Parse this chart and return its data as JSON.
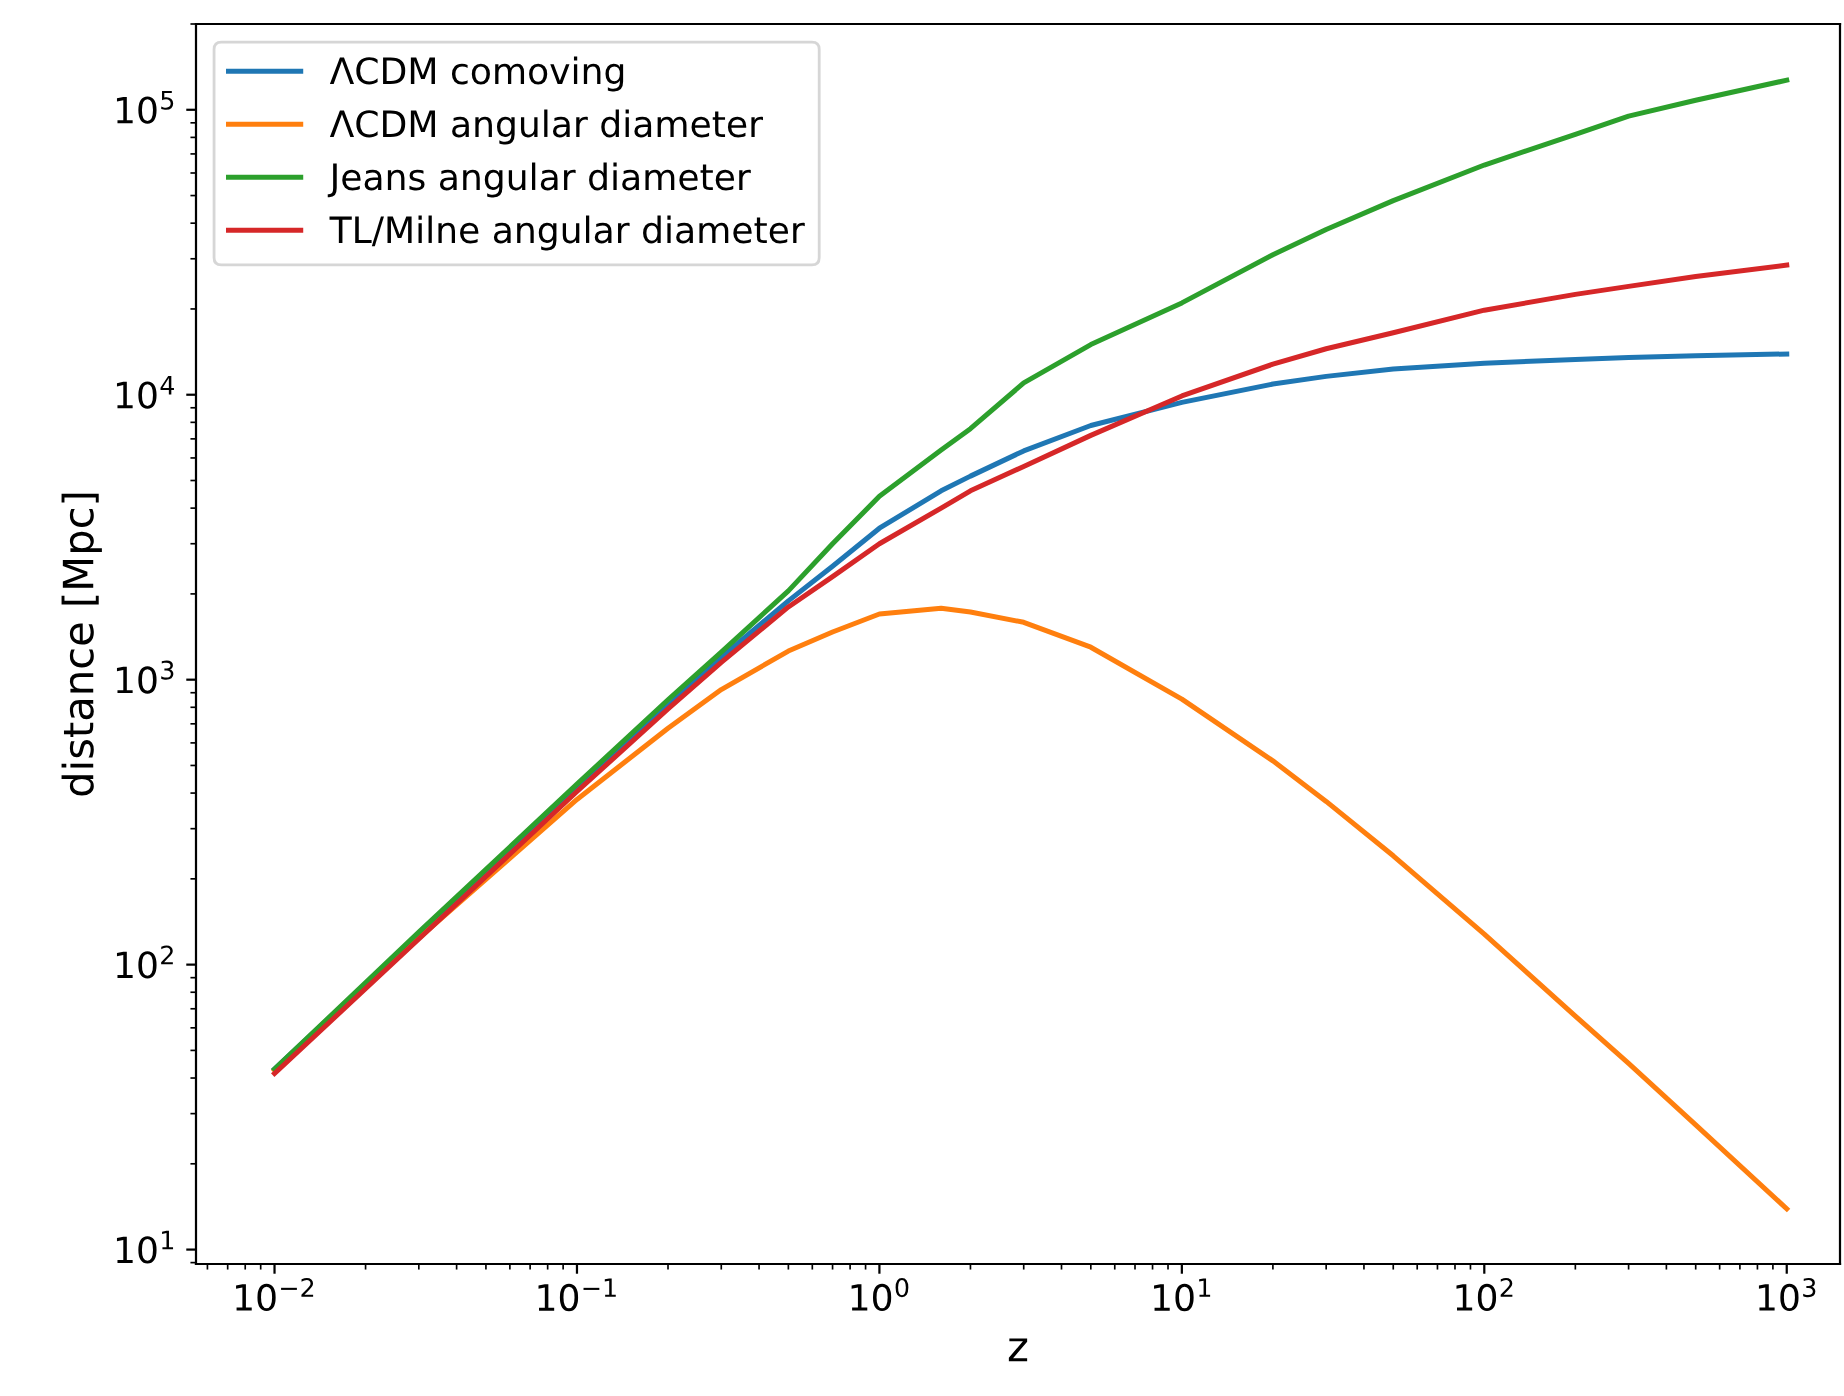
{
  "chart_data": {
    "type": "line",
    "xlabel": "z",
    "ylabel": "distance [Mpc]",
    "log": "xy",
    "legend": "top left",
    "grid": false,
    "marker": "none",
    "line_style": "solid",
    "xlim": [
      0.0055,
      1500
    ],
    "ylim": [
      8.9,
      200000
    ],
    "xticks": [
      {
        "value": 0.01,
        "label": "10$^{−2}$"
      },
      {
        "value": 0.1,
        "label": "10$^{−1}$"
      },
      {
        "value": 1,
        "label": "10$^{0}$"
      },
      {
        "value": 10,
        "label": "10$^{1}$"
      },
      {
        "value": 100,
        "label": "10$^{2}$"
      },
      {
        "value": 1000,
        "label": "10$^{3}$"
      }
    ],
    "yticks": [
      {
        "value": 10,
        "label": "10$^{1}$"
      },
      {
        "value": 100,
        "label": "10$^{2}$"
      },
      {
        "value": 1000,
        "label": "10$^{3}$"
      },
      {
        "value": 10000,
        "label": "10$^{4}$"
      },
      {
        "value": 100000,
        "label": "10$^{5}$"
      }
    ],
    "x": [
      0.01,
      0.03,
      0.1,
      0.2,
      0.3,
      0.5,
      0.7,
      1,
      1.6,
      2,
      3,
      5,
      10,
      20,
      30,
      50,
      100,
      200,
      300,
      500,
      1000
    ],
    "series": [
      {
        "name": "ΛCDM comoving",
        "color": "#1f77b4",
        "values": [
          43,
          128,
          418,
          810,
          1200,
          1890,
          2500,
          3400,
          4600,
          5180,
          6350,
          7800,
          9400,
          10900,
          11600,
          12300,
          12900,
          13300,
          13500,
          13700,
          13900
        ]
      },
      {
        "name": "ΛCDM angular diameter",
        "color": "#ff7f0e",
        "values": [
          42.6,
          124,
          380,
          675,
          923,
          1260,
          1470,
          1700,
          1780,
          1727,
          1590,
          1300,
          855,
          519,
          374,
          241,
          128,
          66,
          45,
          27.4,
          13.9
        ]
      },
      {
        "name": "Jeans angular diameter",
        "color": "#2ca02c",
        "values": [
          43,
          130,
          430,
          850,
          1250,
          2050,
          3000,
          4400,
          6400,
          7600,
          11000,
          15000,
          21000,
          31000,
          38000,
          48000,
          64000,
          82000,
          95000,
          108000,
          127000
        ]
      },
      {
        "name": "TL/Milne angular diameter",
        "color": "#d62728",
        "values": [
          41.5,
          123,
          405,
          790,
          1150,
          1800,
          2300,
          3000,
          4000,
          4600,
          5600,
          7200,
          9900,
          12800,
          14500,
          16500,
          19800,
          22500,
          24000,
          26000,
          28500
        ]
      }
    ]
  }
}
